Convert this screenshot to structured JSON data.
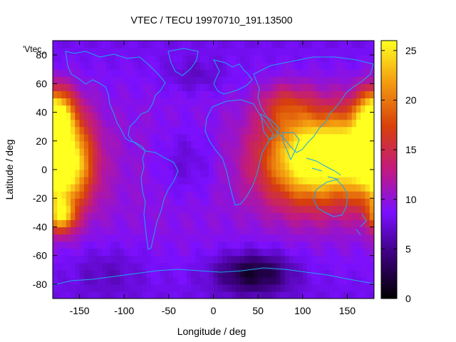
{
  "chart_data": {
    "type": "heatmap",
    "title": "VTEC / TECU 19970710_191.13500",
    "xlabel": "Longitude / deg",
    "ylabel": "Latitude / deg",
    "xlim": [
      -180,
      180
    ],
    "ylim": [
      -90,
      90
    ],
    "x_ticks": [
      "-150",
      "-100",
      "-50",
      "0",
      "50",
      "100",
      "150"
    ],
    "y_ticks": [
      "80",
      "60",
      "40",
      "20",
      "0",
      "-20",
      "-40",
      "-60",
      "-80"
    ],
    "key_label": "'Vtec_",
    "colorbar": {
      "range": [
        0,
        26
      ],
      "ticks": [
        "0",
        "5",
        "10",
        "15",
        "20",
        "25"
      ],
      "palette": [
        "#000000",
        "#3a007a",
        "#7a10ff",
        "#c21a80",
        "#d8400a",
        "#f39a10",
        "#ffff20"
      ]
    },
    "features": [
      {
        "lon": -168,
        "lat": 5,
        "vtec": 19,
        "slon": 22,
        "slat": 22
      },
      {
        "lon": -178,
        "lat": 40,
        "vtec": 14,
        "slon": 15,
        "slat": 12
      },
      {
        "lon": -170,
        "lat": -32,
        "vtec": 12,
        "slon": 10,
        "slat": 8
      },
      {
        "lon": 110,
        "lat": 8,
        "vtec": 19,
        "slon": 38,
        "slat": 22
      },
      {
        "lon": 155,
        "lat": 15,
        "vtec": 6,
        "slon": 25,
        "slat": 20
      },
      {
        "lon": 80,
        "lat": 45,
        "vtec": 5,
        "slon": 20,
        "slat": 10
      },
      {
        "lon": 45,
        "lat": -72,
        "vtec": -7,
        "slon": 30,
        "slat": 10
      },
      {
        "lon": -30,
        "lat": 5,
        "vtec": -2.5,
        "slon": 25,
        "slat": 18
      },
      {
        "lon": -20,
        "lat": 65,
        "vtec": -2,
        "slon": 25,
        "slat": 8
      },
      {
        "lon": -120,
        "lat": -70,
        "vtec": -2,
        "slon": 30,
        "slat": 12
      }
    ]
  }
}
